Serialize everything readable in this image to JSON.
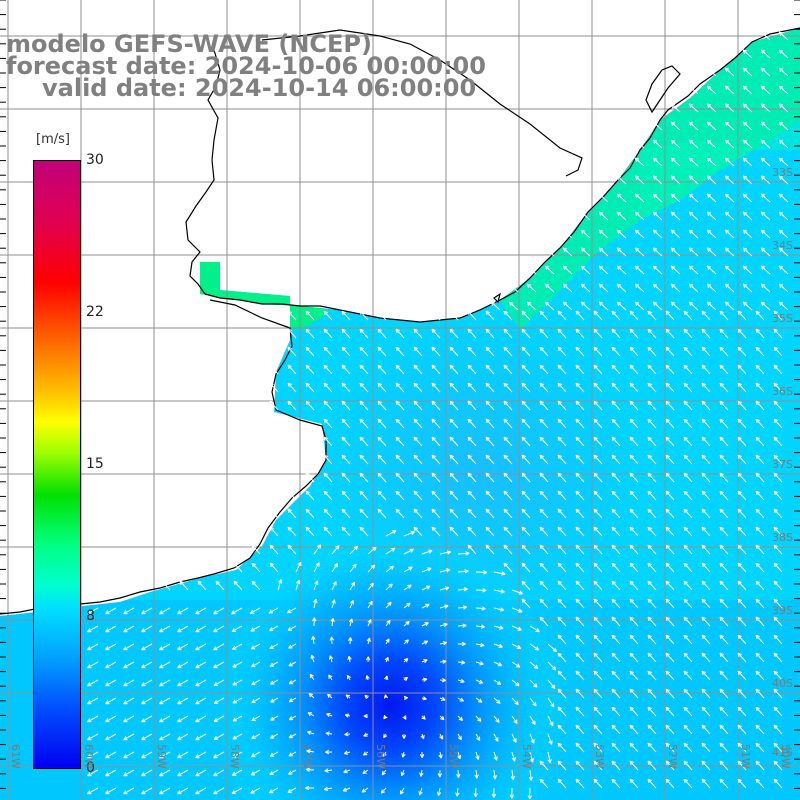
{
  "header": {
    "line1": "modelo GEFS-WAVE (NCEP)",
    "line2": "forecast date: 2024-10-06 00:00:00",
    "line3": "valid date: 2024-10-14 06:00:00"
  },
  "colorbar": {
    "unit": "[m/s]",
    "ticks": [
      "30",
      "22",
      "15",
      "8",
      "0"
    ],
    "min": 0,
    "max": 30
  },
  "grid": {
    "lat_labels": [
      "33S",
      "34S",
      "35S",
      "36S",
      "37S",
      "38S",
      "39S",
      "40S",
      "41S"
    ],
    "lon_labels": [
      "61W",
      "60W",
      "59W",
      "58W",
      "57W",
      "56W",
      "55W",
      "54W",
      "53W",
      "52W",
      "51W",
      "50W"
    ]
  },
  "map_data": {
    "field": "wind speed",
    "units": "m/s",
    "lat_range": [
      "32S",
      "41S"
    ],
    "lon_range": [
      "61W",
      "50W"
    ],
    "dominant_direction": "from southeast / east",
    "minimum_region": "around 56W 40S (approx. 0-2 m/s)",
    "nearshore_values": "approx. 8-10 m/s along Uruguay and Rio de la Plata coasts"
  }
}
